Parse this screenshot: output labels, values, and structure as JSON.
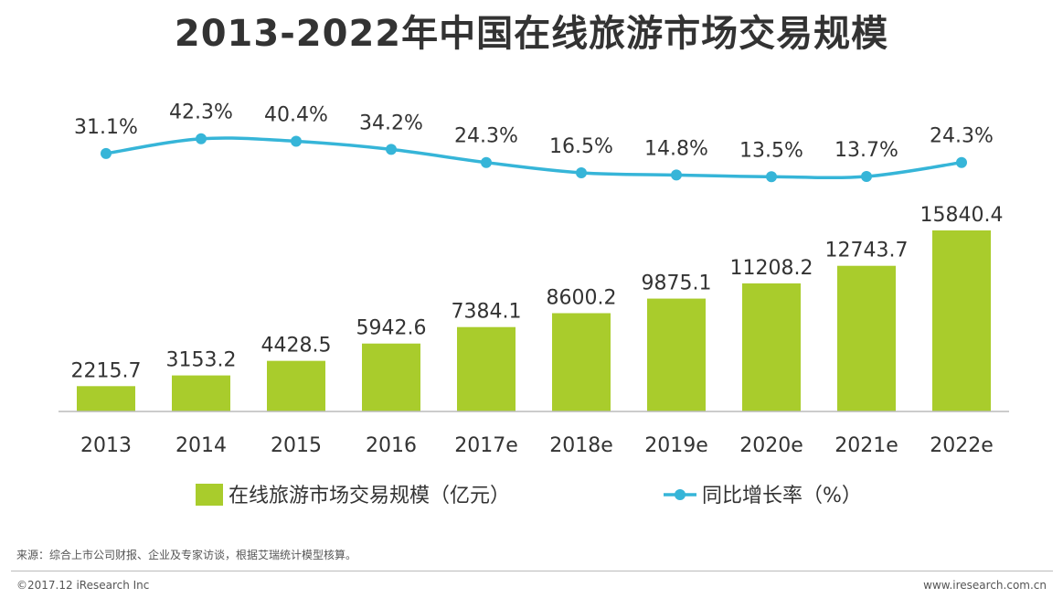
{
  "title": "2013-2022年中国在线旅游市场交易规模",
  "source": "来源：综合上市公司财报、企业及专家访谈，根据艾瑞统计模型核算。",
  "copyright": "©2017.12 iResearch Inc",
  "website": "www.iresearch.com.cn",
  "colors": {
    "bar": "#a9cc2c",
    "line": "#36b5d8",
    "text": "#333333",
    "axis": "#bbbbbb"
  },
  "chart_data": {
    "type": "bar",
    "title": "2013-2022年中国在线旅游市场交易规模",
    "categories": [
      "2013",
      "2014",
      "2015",
      "2016",
      "2017e",
      "2018e",
      "2019e",
      "2020e",
      "2021e",
      "2022e"
    ],
    "series": [
      {
        "name": "在线旅游市场交易规模（亿元）",
        "type": "bar",
        "values": [
          2215.7,
          3153.2,
          4428.5,
          5942.6,
          7384.1,
          8600.2,
          9875.1,
          11208.2,
          12743.7,
          15840.4
        ],
        "labels": [
          "2215.7",
          "3153.2",
          "4428.5",
          "5942.6",
          "7384.1",
          "8600.2",
          "9875.1",
          "11208.2",
          "12743.7",
          "15840.4"
        ]
      },
      {
        "name": "同比增长率（%）",
        "type": "line",
        "values": [
          31.1,
          42.3,
          40.4,
          34.2,
          24.3,
          16.5,
          14.8,
          13.5,
          13.7,
          24.3
        ],
        "labels": [
          "31.1%",
          "42.3%",
          "40.4%",
          "34.2%",
          "24.3%",
          "16.5%",
          "14.8%",
          "13.5%",
          "13.7%",
          "24.3%"
        ]
      }
    ],
    "xlabel": "",
    "ylabel": "",
    "legend_position": "bottom"
  }
}
